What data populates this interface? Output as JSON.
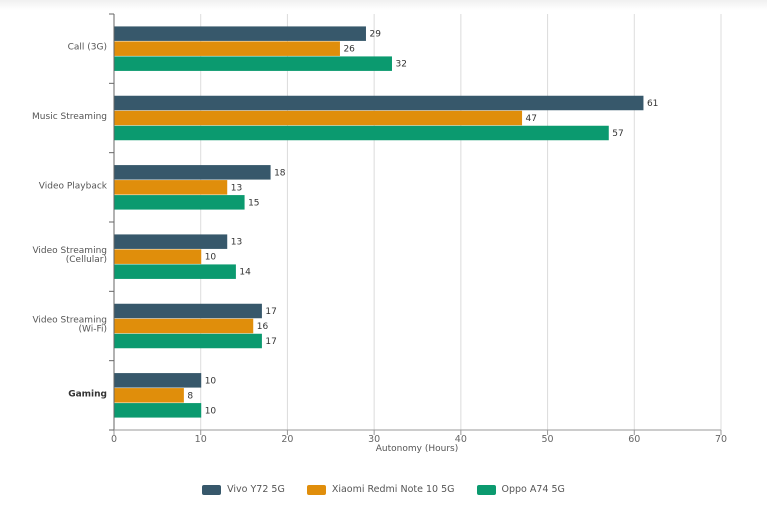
{
  "chart_data": {
    "type": "bar",
    "orientation": "horizontal",
    "title": "",
    "xlabel": "Autonomy (Hours)",
    "ylabel": "",
    "xlim": [
      0,
      70
    ],
    "x_ticks": [
      0,
      10,
      20,
      30,
      40,
      50,
      60,
      70
    ],
    "grid": true,
    "legend_position": "bottom-center",
    "categories": [
      {
        "lines": [
          "Call (3G)"
        ],
        "bold": false
      },
      {
        "lines": [
          "Music Streaming"
        ],
        "bold": false
      },
      {
        "lines": [
          "Video Playback"
        ],
        "bold": false
      },
      {
        "lines": [
          "Video Streaming",
          "(Cellular)"
        ],
        "bold": false
      },
      {
        "lines": [
          "Video Streaming",
          "(Wi-Fi)"
        ],
        "bold": false
      },
      {
        "lines": [
          "Gaming"
        ],
        "bold": true
      }
    ],
    "series": [
      {
        "name": "Vivo Y72 5G",
        "color": "#37586b",
        "values": [
          29,
          61,
          18,
          13,
          17,
          10
        ]
      },
      {
        "name": "Xiaomi Redmi Note 10 5G",
        "color": "#e08e0b",
        "values": [
          26,
          47,
          13,
          10,
          16,
          8
        ]
      },
      {
        "name": "Oppo A74 5G",
        "color": "#0b9a6f",
        "values": [
          32,
          57,
          15,
          14,
          17,
          10
        ]
      }
    ]
  }
}
